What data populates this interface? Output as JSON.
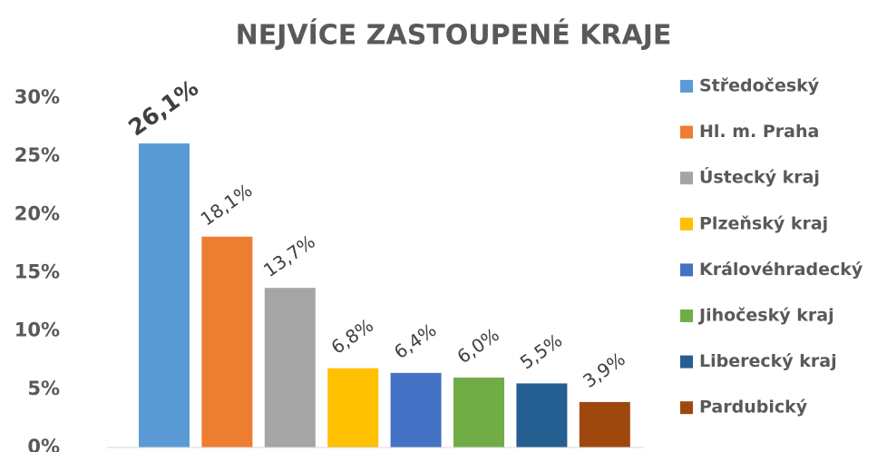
{
  "chart_data": {
    "type": "bar",
    "title": "NEJVÍCE ZASTOUPENÉ KRAJE",
    "categories": [
      "Středočeský",
      "Hl. m. Praha",
      "Ústecký kraj",
      "Plzeňský kraj",
      "Královéhradecký",
      "Jihočeský kraj",
      "Liberecký kraj",
      "Pardubický"
    ],
    "values": [
      26.1,
      18.1,
      13.7,
      6.8,
      6.4,
      6.0,
      5.5,
      3.9
    ],
    "value_labels": [
      "26,1%",
      "18,1%",
      "13,7%",
      "6,8%",
      "6,4%",
      "6,0%",
      "5,5%",
      "3,9%"
    ],
    "colors": [
      "#5b9bd5",
      "#ed7d31",
      "#a5a5a5",
      "#ffc000",
      "#4472c4",
      "#70ad47",
      "#255e91",
      "#9e480e"
    ],
    "ylim": [
      0,
      30
    ],
    "yticks": [
      {
        "value": 0,
        "label": "0%"
      },
      {
        "value": 5,
        "label": "5%"
      },
      {
        "value": 10,
        "label": "10%"
      },
      {
        "value": 15,
        "label": "15%"
      },
      {
        "value": 20,
        "label": "20%"
      },
      {
        "value": 25,
        "label": "25%"
      },
      {
        "value": 30,
        "label": "30%"
      }
    ],
    "grid": false,
    "legend": "right"
  }
}
